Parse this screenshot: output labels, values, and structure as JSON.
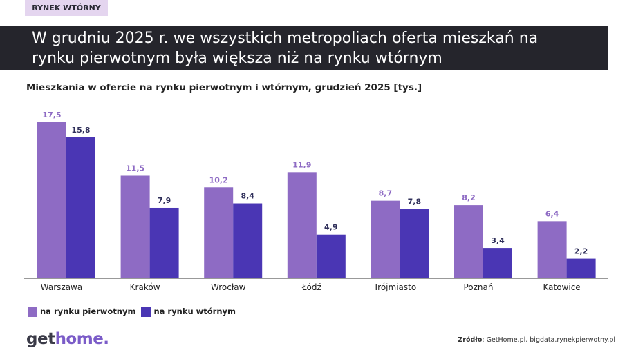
{
  "tag": "RYNEK WTÓRNY",
  "headline": "W grudniu 2025 r. we wszystkich metropoliach oferta mieszkań na\nrynku pierwotnym była większa niż na rynku wtórnym",
  "logo": {
    "part1": "get",
    "part2": "home."
  },
  "source": {
    "label": "Źródło",
    "text": ": GetHome.pl, bigdata.rynekpierwotny.pl"
  },
  "colors": {
    "primary": "#8e6bc4",
    "secondary": "#4a36b4"
  },
  "chart_data": {
    "type": "bar",
    "title": "Mieszkania w ofercie na rynku pierwotnym i wtórnym, grudzień 2025 [tys.]",
    "categories": [
      "Warszawa",
      "Kraków",
      "Wrocław",
      "Łódź",
      "Trójmiasto",
      "Poznań",
      "Katowice"
    ],
    "series": [
      {
        "name": "na rynku pierwotnym",
        "values": [
          17.5,
          11.5,
          10.2,
          11.9,
          8.7,
          8.2,
          6.4
        ]
      },
      {
        "name": "na rynku wtórnym",
        "values": [
          15.8,
          7.9,
          8.4,
          4.9,
          7.8,
          3.4,
          2.2
        ]
      }
    ],
    "ylim": [
      0,
      17.5
    ],
    "grid": false,
    "legend": "bottom-left"
  }
}
